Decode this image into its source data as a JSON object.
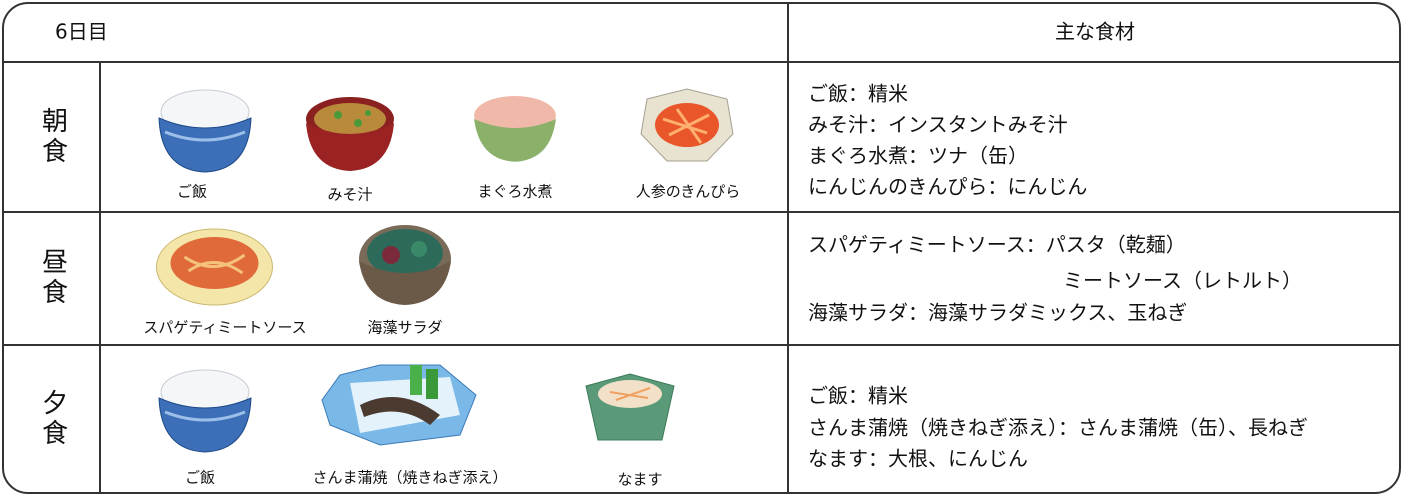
{
  "header": {
    "day": "6日目",
    "ingredients_title": "主な食材"
  },
  "meals": [
    {
      "label": "朝食",
      "dishes": [
        "ご飯",
        "みそ汁",
        "まぐろ水煮",
        "人参のきんぴら"
      ],
      "ingredients": [
        "ご飯：精米",
        "みそ汁：インスタントみそ汁",
        "まぐろ水煮：ツナ（缶）",
        "にんじんのきんぴら：にんじん"
      ]
    },
    {
      "label": "昼食",
      "dishes": [
        "スパゲティミートソース",
        "海藻サラダ"
      ],
      "ingredients": [
        "スパゲティミートソース：パスタ（乾麺）",
        "ミートソース（レトルト）",
        "海藻サラダ：海藻サラダミックス、玉ねぎ"
      ]
    },
    {
      "label": "夕食",
      "dishes": [
        "ご飯",
        "さんま蒲焼（焼きねぎ添え）",
        "なます"
      ],
      "ingredients": [
        "ご飯：精米",
        "さんま蒲焼（焼きねぎ添え）：さんま蒲焼（缶）、長ねぎ",
        "なます：大根、にんじん"
      ]
    }
  ]
}
